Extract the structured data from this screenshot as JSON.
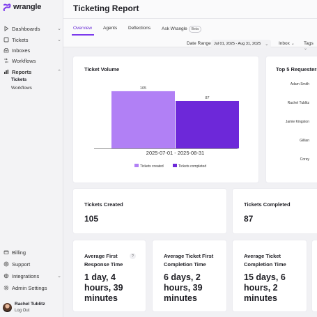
{
  "app": {
    "name": "wrangle",
    "accent": "#7c3aed"
  },
  "sidebar": {
    "items": [
      {
        "label": "Dashboards",
        "icon": "play-icon",
        "chevron": true
      },
      {
        "label": "Tickets",
        "icon": "ticket-icon",
        "chevron": true
      },
      {
        "label": "Inboxes",
        "icon": "inbox-icon",
        "chevron": false
      },
      {
        "label": "Workflows",
        "icon": "workflow-icon",
        "chevron": false
      },
      {
        "label": "Reports",
        "icon": "bar-chart-icon",
        "chevron": true,
        "active": true
      }
    ],
    "subitems": [
      {
        "label": "Tickets",
        "active": true
      },
      {
        "label": "Workflows",
        "active": false
      }
    ],
    "bottom_items": [
      {
        "label": "Billing",
        "icon": "billing-icon",
        "chevron": false
      },
      {
        "label": "Support",
        "icon": "support-icon",
        "chevron": false
      },
      {
        "label": "Integrations",
        "icon": "integrations-icon",
        "chevron": true
      },
      {
        "label": "Admin Settings",
        "icon": "gear-icon",
        "chevron": false
      }
    ],
    "user": {
      "name": "Rachel Tublitz",
      "logout": "Log Out"
    }
  },
  "header": {
    "title": "Ticketing Report"
  },
  "tabs": [
    {
      "label": "Overview",
      "active": true
    },
    {
      "label": "Agents",
      "active": false
    },
    {
      "label": "Deflections",
      "active": false
    },
    {
      "label": "Ask Wrangle",
      "active": false,
      "badge": "Beta"
    }
  ],
  "filters": {
    "date_label": "Date Range",
    "date_value": "Jul 01, 2025 - Aug 31, 2025",
    "inbox_label": "Inbox",
    "tags_label": "Tags"
  },
  "ticket_volume": {
    "title": "Ticket Volume",
    "chart_data": {
      "type": "bar",
      "categories": [
        "2025-07-01 - 2025-08-31"
      ],
      "series": [
        {
          "name": "Tickets created",
          "values": [
            105
          ],
          "color": "#b180f5"
        },
        {
          "name": "Tickets completed",
          "values": [
            87
          ],
          "color": "#6d28d9"
        }
      ],
      "ylim": [
        0,
        110
      ],
      "legend": "bottom"
    }
  },
  "top_requesters": {
    "title": "Top 5 Requesters",
    "names": [
      "Adam Smith",
      "Rachel Tublitz",
      "Jamie Kingston",
      "Gillian",
      "Corey"
    ]
  },
  "stats": {
    "created": {
      "title": "Tickets Created",
      "value": "105"
    },
    "completed": {
      "title": "Tickets Completed",
      "value": "87"
    },
    "first_response": {
      "title_line1": "Average First",
      "title_line2": "Response Time",
      "help": "?",
      "value_lines": [
        "1 day, 4",
        "hours, 39",
        "minutes"
      ]
    },
    "first_completion": {
      "title_line1": "Average Ticket First",
      "title_line2": "Completion Time",
      "value_lines": [
        "6 days, 2",
        "hours, 39",
        "minutes"
      ]
    },
    "completion": {
      "title_line1": "Average Ticket",
      "title_line2": "Completion Time",
      "value_lines": [
        "15 days, 6",
        "hours, 2",
        "minutes"
      ]
    }
  }
}
